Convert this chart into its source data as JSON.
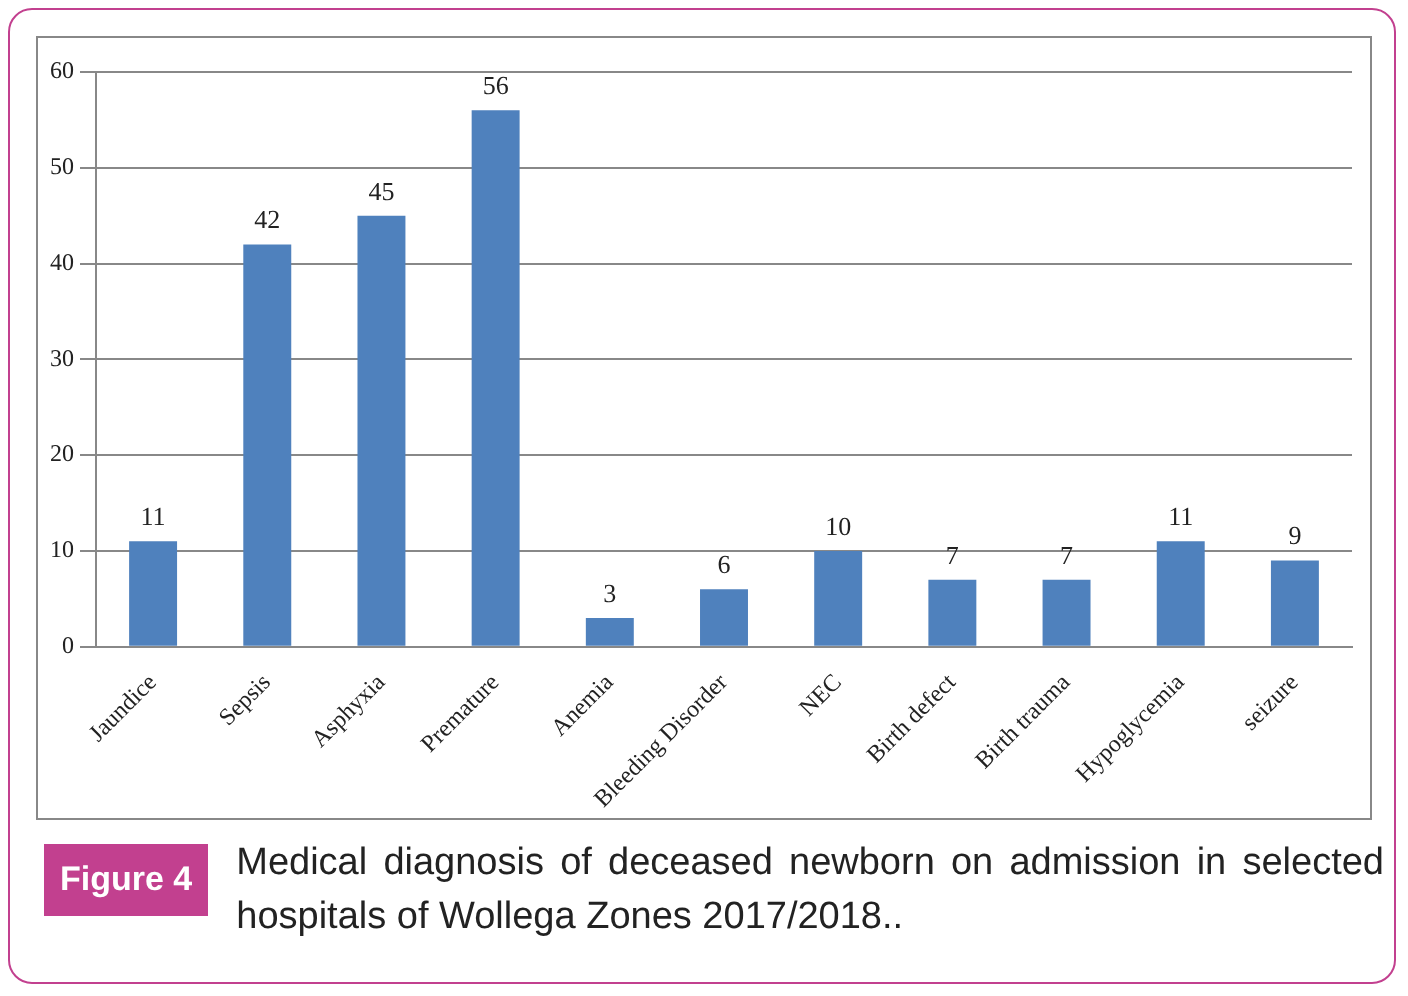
{
  "chart_data": {
    "type": "bar",
    "categories": [
      "Jaundice",
      "Sepsis",
      "Asphyxia",
      "Premature",
      "Anemia",
      "Bleeding Disorder",
      "NEC",
      "Birth defect",
      "Birth trauma",
      "Hypoglycemia",
      "seizure"
    ],
    "values": [
      11,
      42,
      45,
      56,
      3,
      6,
      10,
      7,
      7,
      11,
      9
    ],
    "color": "#4f81bd",
    "ylim": [
      0,
      60
    ],
    "yticks": [
      0,
      10,
      20,
      30,
      40,
      50,
      60
    ],
    "grid": "y",
    "data_labels": true,
    "legend": false,
    "annotations": [
      "Figure 4",
      "Medical diagnosis of deceased newborn on admission in selected hospitals of Wollega Zones 2017/2018.."
    ]
  }
}
